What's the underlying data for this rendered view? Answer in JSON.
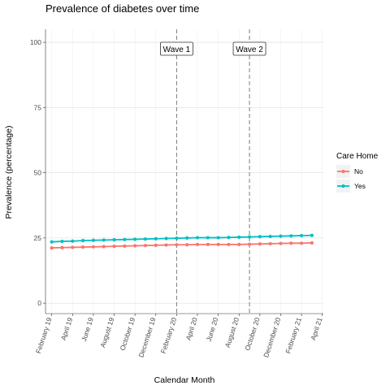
{
  "chart_data": {
    "type": "line",
    "title": "Prevalence of diabetes over time",
    "xlabel": "Calendar Month",
    "ylabel": "Prevalence (percentage)",
    "ylim": [
      -4,
      105
    ],
    "y_ticks": [
      0,
      25,
      50,
      75,
      100
    ],
    "x_ticks": [
      "February 19",
      "April 19",
      "June 19",
      "August 19",
      "October 19",
      "December 19",
      "February 20",
      "April 20",
      "June 20",
      "August 20",
      "October 20",
      "December 20",
      "February 21",
      "April 21"
    ],
    "x": [
      "2019-02",
      "2019-03",
      "2019-04",
      "2019-05",
      "2019-06",
      "2019-07",
      "2019-08",
      "2019-09",
      "2019-10",
      "2019-11",
      "2019-12",
      "2020-01",
      "2020-02",
      "2020-03",
      "2020-04",
      "2020-05",
      "2020-06",
      "2020-07",
      "2020-08",
      "2020-09",
      "2020-10",
      "2020-11",
      "2020-12",
      "2021-01",
      "2021-02",
      "2021-03"
    ],
    "series": [
      {
        "name": "No",
        "color": "#F8766D",
        "values": [
          21.2,
          21.3,
          21.4,
          21.5,
          21.6,
          21.7,
          21.8,
          21.9,
          22.0,
          22.1,
          22.2,
          22.3,
          22.4,
          22.4,
          22.5,
          22.5,
          22.5,
          22.5,
          22.5,
          22.6,
          22.7,
          22.8,
          22.9,
          23.0,
          23.0,
          23.1
        ]
      },
      {
        "name": "Yes",
        "color": "#00BFC4",
        "values": [
          23.5,
          23.7,
          23.8,
          24.0,
          24.1,
          24.2,
          24.3,
          24.4,
          24.5,
          24.6,
          24.7,
          24.8,
          24.9,
          25.0,
          25.1,
          25.1,
          25.1,
          25.2,
          25.3,
          25.4,
          25.5,
          25.6,
          25.7,
          25.8,
          25.9,
          26.0
        ]
      }
    ],
    "annotations": [
      {
        "label": "Wave 1",
        "x": "2020-02"
      },
      {
        "label": "Wave 2",
        "x": "2020-09"
      }
    ],
    "legend": {
      "title": "Care Home",
      "placement": "right"
    },
    "grid": true
  }
}
